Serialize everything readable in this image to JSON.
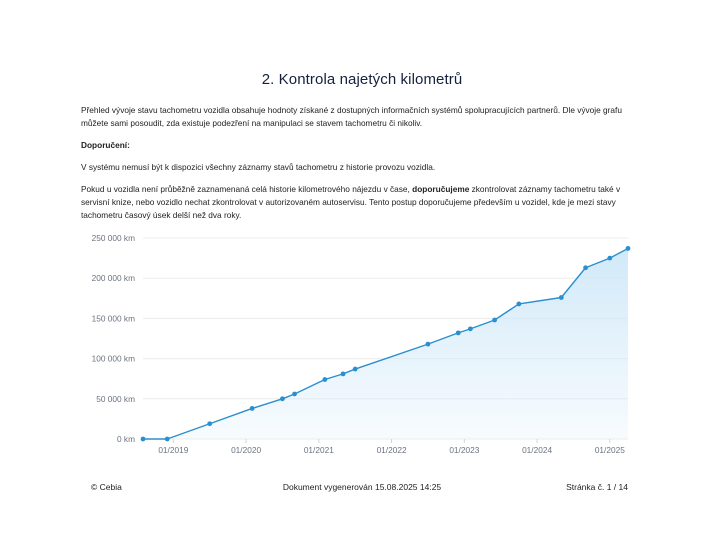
{
  "header": {
    "title": "2. Kontrola najetých kilometrů"
  },
  "content": {
    "paragraph1": "Přehled vývoje stavu tachometru vozidla obsahuje hodnoty získané z dostupných informačních systémů spolupracujících partnerů. Dle vývoje grafu můžete sami posoudit, zda existuje podezření na manipulaci se stavem tachometru či nikoliv.",
    "recommendation_label": "Doporučení:",
    "paragraph2": "V systému nemusí být k dispozici všechny záznamy stavů tachometru z historie provozu vozidla.",
    "paragraph3_part1": "Pokud u vozidla není průběžně zaznamenaná celá historie kilometrového nájezdu v čase, ",
    "paragraph3_bold": "doporučujeme",
    "paragraph3_part2": " zkontrolovat záznamy tachometru také v servisní knize, nebo vozidlo nechat zkontrolovat v autorizovaném autoservisu. Tento postup doporučujeme především u vozidel, kde je mezi stavy tachometru časový úsek delší než dva roky."
  },
  "chart_data": {
    "type": "area",
    "title": "",
    "xlabel": "",
    "ylabel": "",
    "x_ticks": [
      "01/2019",
      "01/2020",
      "01/2021",
      "01/2022",
      "01/2023",
      "01/2024",
      "01/2025"
    ],
    "y_ticks": [
      "0 km",
      "50 000 km",
      "100 000 km",
      "150 000 km",
      "200 000 km",
      "250 000 km"
    ],
    "ylim": [
      0,
      250000
    ],
    "xlim": [
      "2018-08",
      "2025-04"
    ],
    "grid": true,
    "line_color": "#2a8fd0",
    "fill_color": "#d4ecf9",
    "points": [
      {
        "x": "2018-08",
        "y": 0
      },
      {
        "x": "2018-12",
        "y": 0
      },
      {
        "x": "2019-07",
        "y": 19000
      },
      {
        "x": "2020-02",
        "y": 38000
      },
      {
        "x": "2020-07",
        "y": 50000
      },
      {
        "x": "2020-09",
        "y": 56000
      },
      {
        "x": "2021-02",
        "y": 74000
      },
      {
        "x": "2021-05",
        "y": 81000
      },
      {
        "x": "2021-07",
        "y": 87000
      },
      {
        "x": "2022-07",
        "y": 118000
      },
      {
        "x": "2022-12",
        "y": 132000
      },
      {
        "x": "2023-02",
        "y": 137000
      },
      {
        "x": "2023-06",
        "y": 148000
      },
      {
        "x": "2023-10",
        "y": 168000
      },
      {
        "x": "2024-05",
        "y": 176000
      },
      {
        "x": "2024-09",
        "y": 213000
      },
      {
        "x": "2025-01",
        "y": 225000
      },
      {
        "x": "2025-04",
        "y": 237000
      }
    ]
  },
  "footer": {
    "copyright": "© Cebia",
    "generated": "Dokument vygenerován 15.08.2025 14:25",
    "page": "Stránka č. 1 / 14"
  }
}
